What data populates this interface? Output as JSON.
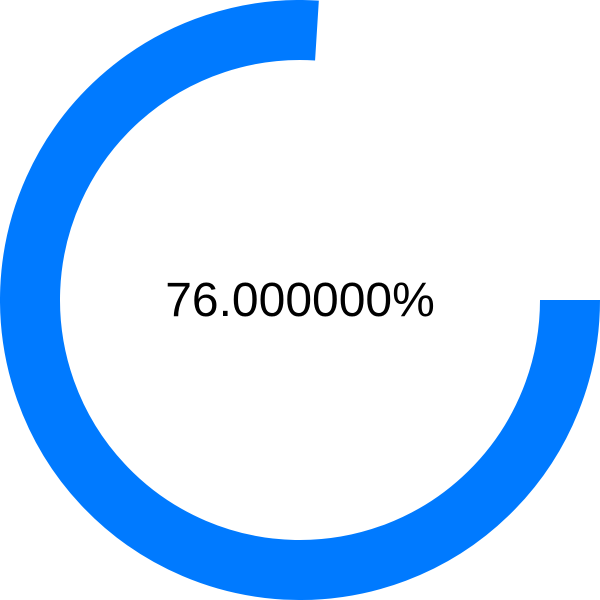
{
  "progress": {
    "value": 0.76,
    "label": "76.000000%",
    "color": "#007AFF",
    "track_color": "#ffffff",
    "text_color": "#000000"
  }
}
